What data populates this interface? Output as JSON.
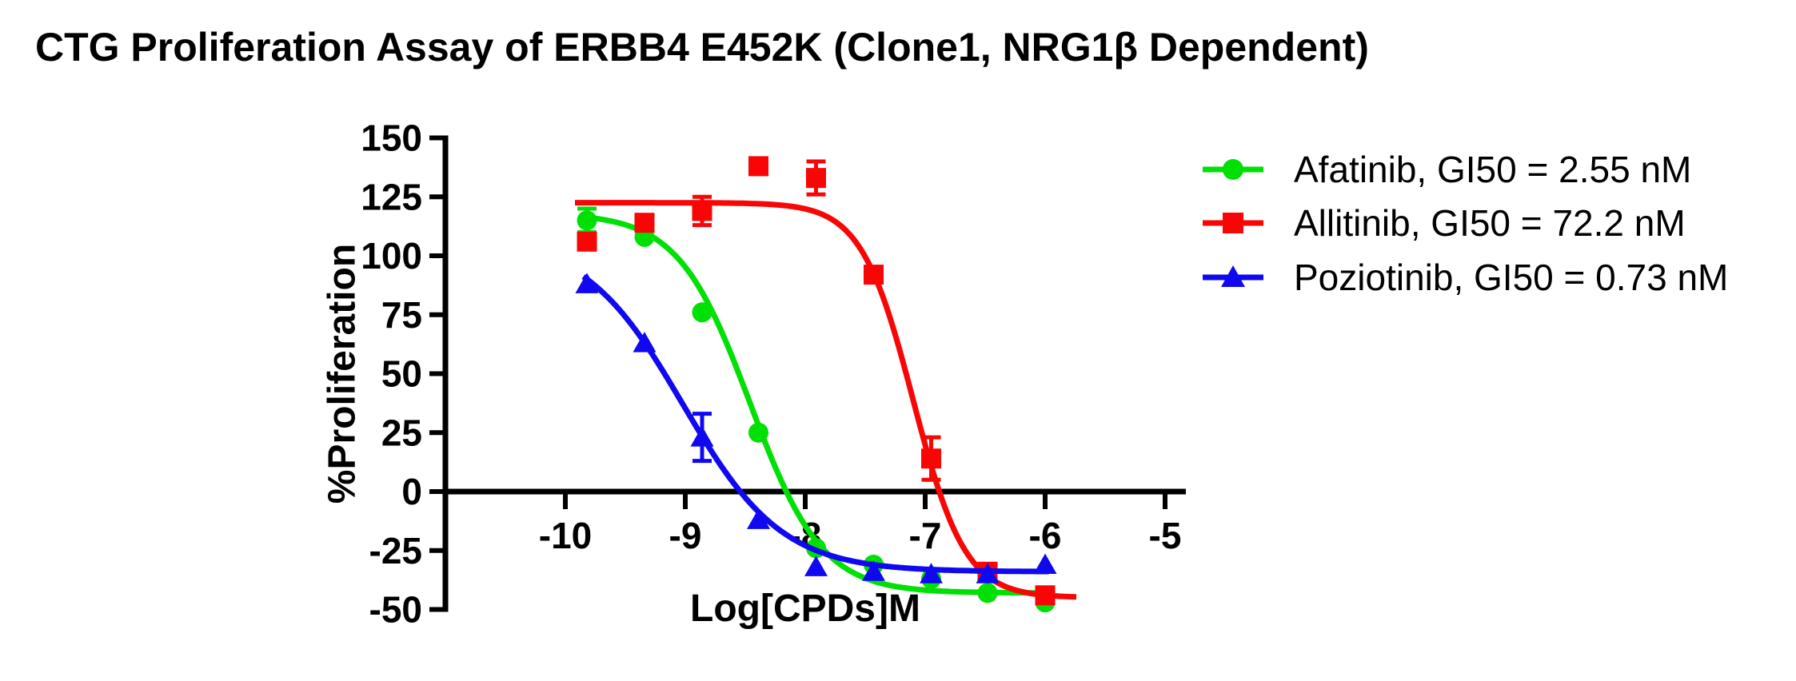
{
  "header": {
    "title": "CTG Proliferation Assay of ERBB4 E452K (Clone1, NRG1β Dependent)"
  },
  "chart_data": {
    "type": "scatter-line",
    "title": "CTG Proliferation Assay of ERBB4 E452K (Clone1, NRG1β Dependent)",
    "xlabel": "Log[CPDs]M",
    "ylabel": "%Proliferation",
    "xlim": [
      -11,
      -4.85
    ],
    "ylim": [
      -50,
      150
    ],
    "x_ticks": [
      -10,
      -9,
      -8,
      -7,
      -6,
      -5
    ],
    "y_ticks": [
      150,
      125,
      100,
      75,
      50,
      25,
      0,
      -25,
      -50
    ],
    "grid": false,
    "legend_position": "right-top",
    "x": [
      -9.82,
      -9.34,
      -8.86,
      -8.39,
      -7.91,
      -7.43,
      -6.95,
      -6.48,
      -6.0
    ],
    "series": [
      {
        "name": "Afatinib",
        "legend": "Afatinib, GI50 = 2.55 nM",
        "gi50_nm": 2.55,
        "marker": "circle",
        "color": "#00e005",
        "y": [
          115,
          108,
          76,
          25,
          -24,
          -31,
          -37,
          -43,
          -47
        ],
        "yerr": [
          5,
          null,
          null,
          null,
          null,
          null,
          null,
          null,
          null
        ],
        "fit": {
          "top": 118,
          "bottom": -43,
          "logec50": -8.46,
          "hill": 1.45,
          "xstart": -9.85,
          "xend": -5.97
        }
      },
      {
        "name": "Allitinib",
        "legend": "Allitinib, GI50 = 72.2 nM",
        "gi50_nm": 72.2,
        "marker": "square",
        "color": "#f80606",
        "y": [
          106,
          114,
          119,
          138,
          133,
          92,
          14,
          -34,
          -44
        ],
        "yerr": [
          null,
          null,
          6,
          null,
          7,
          null,
          9,
          null,
          null
        ],
        "fit": {
          "top": 122.5,
          "bottom": -45,
          "logec50": -7.1,
          "hill": 2.0,
          "xstart": -9.92,
          "xend": -5.74
        }
      },
      {
        "name": "Poziotinib",
        "legend": "Poziotinib, GI50 = 0.73 nM",
        "gi50_nm": 0.73,
        "marker": "triangle",
        "color": "#1008f0",
        "y": [
          88,
          63,
          23,
          -12,
          -32,
          -34,
          -35,
          -35,
          -31
        ],
        "yerr": [
          null,
          null,
          10,
          null,
          null,
          null,
          null,
          null,
          null
        ],
        "fit": {
          "top": 108,
          "bottom": -34,
          "logec50": -9.02,
          "hill": 1.05,
          "xstart": -9.85,
          "xend": -5.97
        }
      }
    ]
  }
}
